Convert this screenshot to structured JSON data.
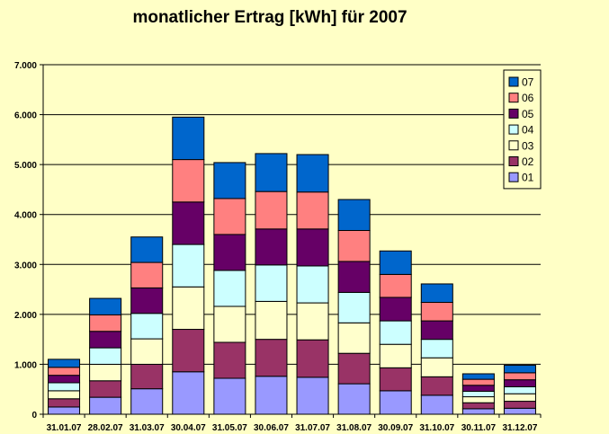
{
  "chart_data": {
    "type": "bar",
    "stacked": true,
    "title": "monatlicher Ertrag [kWh] für 2007",
    "xlabel": "",
    "ylabel": "",
    "ylim": [
      0,
      7000
    ],
    "yticks": [
      {
        "value": 0,
        "label": "0"
      },
      {
        "value": 1000,
        "label": "1.000"
      },
      {
        "value": 2000,
        "label": "2.000"
      },
      {
        "value": 3000,
        "label": "3.000"
      },
      {
        "value": 4000,
        "label": "4.000"
      },
      {
        "value": 5000,
        "label": "5.000"
      },
      {
        "value": 6000,
        "label": "6.000"
      },
      {
        "value": 7000,
        "label": "7.000"
      }
    ],
    "grid": true,
    "legend_position": "top-right",
    "categories": [
      "31.01.07",
      "28.02.07",
      "31.03.07",
      "30.04.07",
      "31.05.07",
      "30.06.07",
      "31.07.07",
      "31.08.07",
      "30.09.07",
      "31.10.07",
      "30.11.07",
      "31.12.07"
    ],
    "series": [
      {
        "name": "01",
        "color": "#9999ff",
        "values": [
          145,
          340,
          510,
          850,
          720,
          760,
          740,
          610,
          470,
          380,
          110,
          120
        ]
      },
      {
        "name": "02",
        "color": "#993366",
        "values": [
          165,
          330,
          490,
          850,
          720,
          740,
          750,
          610,
          460,
          370,
          120,
          140
        ]
      },
      {
        "name": "03",
        "color": "#ffffcc",
        "values": [
          160,
          330,
          510,
          850,
          720,
          760,
          740,
          610,
          470,
          380,
          120,
          150
        ]
      },
      {
        "name": "04",
        "color": "#ccffff",
        "values": [
          160,
          330,
          510,
          850,
          720,
          730,
          740,
          610,
          470,
          370,
          110,
          140
        ]
      },
      {
        "name": "05",
        "color": "#660066",
        "values": [
          150,
          330,
          510,
          850,
          720,
          720,
          740,
          620,
          470,
          370,
          120,
          140
        ]
      },
      {
        "name": "06",
        "color": "#ff8080",
        "values": [
          160,
          330,
          510,
          850,
          720,
          750,
          740,
          620,
          460,
          370,
          120,
          140
        ]
      },
      {
        "name": "07",
        "color": "#0066cc",
        "values": [
          160,
          330,
          510,
          850,
          720,
          760,
          750,
          620,
          470,
          370,
          110,
          150
        ]
      }
    ]
  }
}
